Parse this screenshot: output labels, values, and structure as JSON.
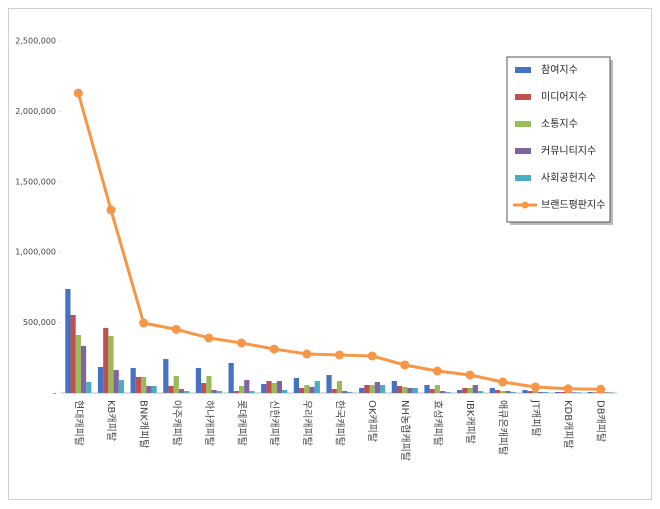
{
  "chart_data": {
    "type": "bar",
    "categories": [
      "현대캐피탈",
      "KB캐피탈",
      "BNK캐피탈",
      "아주캐피탈",
      "하나캐피탈",
      "롯데캐피탈",
      "신한캐피탈",
      "우리캐피탈",
      "한국캐피탈",
      "OK캐피탈",
      "NH농협캐피탈",
      "효성캐피탈",
      "IBK캐피탈",
      "애큐온캐피탈",
      "JT캐피탈",
      "KDB캐피탈",
      "DB캐피탈"
    ],
    "series": [
      {
        "name": "참여지수",
        "color": "#4472c4",
        "type": "bar",
        "values": [
          739000,
          185000,
          178000,
          241000,
          178000,
          213000,
          64000,
          107000,
          128000,
          36000,
          85000,
          57000,
          21000,
          36000,
          21000,
          7000,
          7000
        ]
      },
      {
        "name": "미디어지수",
        "color": "#c0504d",
        "type": "bar",
        "values": [
          554000,
          462000,
          114000,
          50000,
          71000,
          14000,
          85000,
          36000,
          28000,
          57000,
          50000,
          28000,
          36000,
          21000,
          14000,
          7000,
          5000
        ]
      },
      {
        "name": "소통지수",
        "color": "#9bbb59",
        "type": "bar",
        "values": [
          412000,
          405000,
          114000,
          121000,
          121000,
          50000,
          71000,
          57000,
          85000,
          57000,
          43000,
          57000,
          36000,
          14000,
          14000,
          5000,
          5000
        ]
      },
      {
        "name": "커뮤니티지수",
        "color": "#8064a2",
        "type": "bar",
        "values": [
          334000,
          163000,
          50000,
          28000,
          21000,
          92000,
          85000,
          43000,
          14000,
          78000,
          36000,
          14000,
          57000,
          14000,
          7000,
          5000,
          5000
        ]
      },
      {
        "name": "사회공헌지수",
        "color": "#4bacc6",
        "type": "bar",
        "values": [
          78000,
          92000,
          50000,
          14000,
          14000,
          14000,
          21000,
          85000,
          7000,
          57000,
          36000,
          7000,
          14000,
          7000,
          7000,
          5000,
          5000
        ]
      },
      {
        "name": "브랜드평판지수",
        "color": "#f79646",
        "type": "line",
        "values": [
          2130000,
          1300000,
          497000,
          452000,
          391000,
          355000,
          312000,
          277000,
          270000,
          263000,
          199000,
          156000,
          128000,
          78000,
          43000,
          30000,
          27000
        ]
      }
    ],
    "ylim": [
      0,
      2500000
    ],
    "yticks": [
      {
        "value": 0,
        "label": "-"
      },
      {
        "value": 500000,
        "label": "500,000"
      },
      {
        "value": 1000000,
        "label": "1,000,000"
      },
      {
        "value": 1500000,
        "label": "1,500,000"
      },
      {
        "value": 2000000,
        "label": "2,000,000"
      },
      {
        "value": 2500000,
        "label": "2,500,000"
      }
    ],
    "legend": "top-right"
  }
}
